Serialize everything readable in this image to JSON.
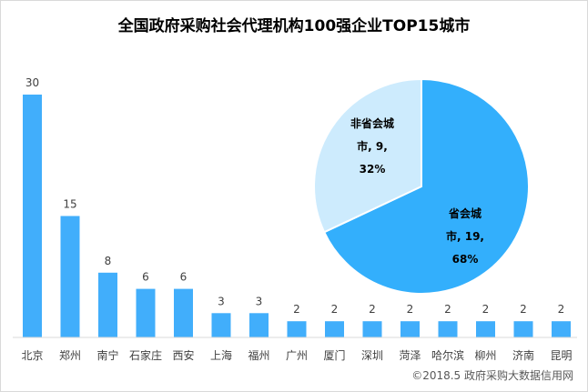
{
  "chart_data": [
    {
      "type": "bar",
      "title": "全国政府采购社会代理机构100强企业TOP15城市",
      "categories": [
        "北京",
        "郑州",
        "南宁",
        "石家庄",
        "西安",
        "上海",
        "福州",
        "广州",
        "厦门",
        "深圳",
        "菏泽",
        "哈尔滨",
        "柳州",
        "济南",
        "昆明"
      ],
      "values": [
        30,
        15,
        8,
        6,
        6,
        3,
        3,
        2,
        2,
        2,
        2,
        2,
        2,
        2,
        2
      ],
      "xlabel": "",
      "ylabel": "",
      "ylim": [
        0,
        30
      ],
      "grid": false,
      "color": "#41AEFB"
    },
    {
      "type": "pie",
      "slices": [
        {
          "label_lines": [
            "省会城",
            "市, 19,",
            "68%"
          ],
          "value": 19,
          "percent": 68,
          "color": "#33AFFC"
        },
        {
          "label_lines": [
            "非省会城",
            "市, 9,",
            "32%"
          ],
          "value": 9,
          "percent": 32,
          "color": "#CDEBFD"
        }
      ],
      "border_color": "#FFFFFF"
    }
  ],
  "footer": {
    "source": "©2018.5 政府采购大数据信用网"
  }
}
